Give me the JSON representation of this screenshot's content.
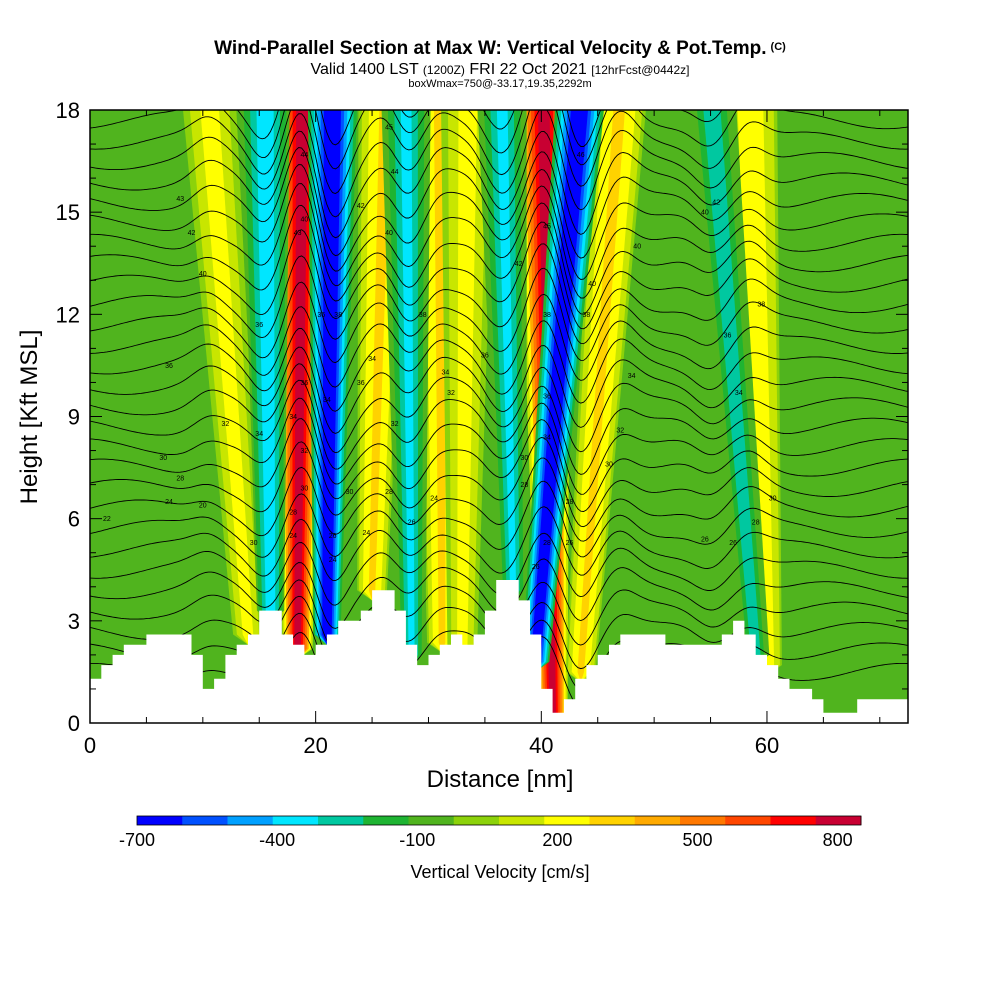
{
  "title": "Wind-Parallel Section at Max W: Vertical Velocity & Pot.Temp.",
  "copyright_mark": "(C)",
  "subtitle": {
    "valid_prefix": "Valid 1400 LST",
    "zulu": "(1200Z)",
    "date": "FRI 22 Oct 2021",
    "forecast": "[12hrFcst@0442z]"
  },
  "subtitle2": "boxWmax=750@-33.17,19.35,2292m",
  "chart_data": {
    "type": "heatmap",
    "xlabel": "Distance [nm]",
    "ylabel": "Height [Kft MSL]",
    "xlim": [
      0,
      72.5
    ],
    "ylim": [
      0,
      18
    ],
    "x_ticks": [
      0,
      20,
      40,
      60
    ],
    "y_ticks": [
      0,
      3,
      6,
      9,
      12,
      15,
      18
    ],
    "colorbar": {
      "label": "Vertical Velocity [cm/s]",
      "tick_labels": [
        "-700",
        "-400",
        "-100",
        "200",
        "500",
        "800"
      ],
      "tick_values": [
        -700,
        -400,
        -100,
        200,
        500,
        800
      ],
      "range": [
        -700,
        850
      ],
      "colors": [
        "#0000ff",
        "#0050ff",
        "#00a0ff",
        "#00e6ff",
        "#00c8a0",
        "#1eb432",
        "#50b41e",
        "#8cd20a",
        "#c8e600",
        "#ffff00",
        "#ffd200",
        "#ffaa00",
        "#ff7800",
        "#ff4600",
        "#ff0000",
        "#c80032"
      ]
    },
    "updrafts": [
      {
        "x_top": 18.8,
        "x_bottom": 18.4,
        "w_max": 800
      },
      {
        "x_top": 40.2,
        "x_bottom": 41.0,
        "w_max": 800
      },
      {
        "x_top": 26.2,
        "x_bottom": 25.0,
        "w_max": 300
      },
      {
        "x_top": 31.0,
        "x_bottom": 31.2,
        "w_max": 300
      },
      {
        "x_top": 47.0,
        "x_bottom": 43.5,
        "w_max": 300
      },
      {
        "x_top": 58.5,
        "x_bottom": 60.0,
        "w_max": 250
      },
      {
        "x_top": 10.5,
        "x_bottom": 14.0,
        "w_max": 200
      },
      {
        "x_top": 33.5,
        "x_bottom": 33.0,
        "w_max": 200
      }
    ],
    "downdrafts": [
      {
        "x_top": 21.5,
        "x_bottom": 21.0,
        "w_min": -700
      },
      {
        "x_top": 43.5,
        "x_bottom": 39.5,
        "w_min": -700
      },
      {
        "x_top": 15.5,
        "x_bottom": 16.0,
        "w_min": -400
      },
      {
        "x_top": 28.0,
        "x_bottom": 28.5,
        "w_min": -350
      },
      {
        "x_top": 36.5,
        "x_bottom": 37.5,
        "w_min": -350
      },
      {
        "x_top": 55.0,
        "x_bottom": 59.0,
        "w_min": -250
      }
    ],
    "terrain_kft": {
      "x": [
        0,
        1,
        2,
        3,
        4,
        5,
        6,
        7,
        8,
        9,
        10,
        11,
        12,
        13,
        14,
        15,
        16,
        17,
        18,
        19,
        20,
        21,
        22,
        23,
        24,
        25,
        26,
        27,
        28,
        29,
        30,
        31,
        32,
        33,
        34,
        35,
        36,
        37,
        38,
        39,
        40,
        41,
        42,
        43,
        44,
        45,
        46,
        47,
        48,
        49,
        50,
        51,
        52,
        53,
        54,
        55,
        56,
        57,
        58,
        59,
        60,
        61,
        62,
        63,
        64,
        65,
        66,
        67,
        68,
        69,
        70,
        71,
        72.5
      ],
      "y": [
        1.3,
        1.7,
        2.0,
        2.3,
        2.3,
        2.6,
        2.6,
        2.6,
        2.6,
        2.0,
        1.0,
        1.3,
        2.0,
        2.3,
        2.6,
        3.3,
        3.3,
        2.6,
        2.3,
        2.0,
        2.3,
        2.6,
        3.0,
        3.0,
        3.3,
        3.9,
        3.9,
        3.3,
        2.3,
        1.7,
        2.0,
        2.3,
        2.6,
        2.3,
        2.6,
        3.3,
        4.2,
        4.2,
        3.6,
        2.6,
        1.0,
        0.3,
        0.7,
        1.3,
        1.7,
        2.0,
        2.3,
        2.6,
        2.6,
        2.6,
        2.6,
        2.3,
        2.3,
        2.3,
        2.3,
        2.3,
        2.6,
        3.0,
        2.6,
        2.0,
        1.7,
        1.3,
        1.0,
        1.0,
        0.7,
        0.3,
        0.3,
        0.3,
        0.7,
        0.7,
        0.7,
        0.7,
        0.3
      ]
    },
    "theta_contour_labels": [
      {
        "x": 8,
        "y": 15.4,
        "label": "43"
      },
      {
        "x": 9,
        "y": 14.4,
        "label": "42"
      },
      {
        "x": 10,
        "y": 13.2,
        "label": "40"
      },
      {
        "x": 7,
        "y": 10.5,
        "label": "36"
      },
      {
        "x": 12,
        "y": 8.8,
        "label": "32"
      },
      {
        "x": 6.5,
        "y": 7.8,
        "label": "30"
      },
      {
        "x": 8,
        "y": 7.2,
        "label": "28"
      },
      {
        "x": 7,
        "y": 6.5,
        "label": "24"
      },
      {
        "x": 1.5,
        "y": 6.0,
        "label": "22"
      },
      {
        "x": 10,
        "y": 6.4,
        "label": "20"
      },
      {
        "x": 15,
        "y": 11.7,
        "label": "36"
      },
      {
        "x": 15,
        "y": 8.5,
        "label": "34"
      },
      {
        "x": 14.5,
        "y": 5.3,
        "label": "30"
      },
      {
        "x": 18.4,
        "y": 14.4,
        "label": "43"
      },
      {
        "x": 19,
        "y": 16.7,
        "label": "44"
      },
      {
        "x": 19,
        "y": 10.0,
        "label": "36"
      },
      {
        "x": 18,
        "y": 9.0,
        "label": "34"
      },
      {
        "x": 19,
        "y": 8.0,
        "label": "32"
      },
      {
        "x": 19,
        "y": 6.9,
        "label": "30"
      },
      {
        "x": 18,
        "y": 6.2,
        "label": "28"
      },
      {
        "x": 18,
        "y": 5.5,
        "label": "24"
      },
      {
        "x": 19,
        "y": 14.8,
        "label": "40"
      },
      {
        "x": 20.5,
        "y": 12.0,
        "label": "36"
      },
      {
        "x": 22,
        "y": 12.0,
        "label": "38"
      },
      {
        "x": 21,
        "y": 9.5,
        "label": "34"
      },
      {
        "x": 21.5,
        "y": 5.5,
        "label": "26"
      },
      {
        "x": 21.5,
        "y": 4.8,
        "label": "24"
      },
      {
        "x": 26.5,
        "y": 17.5,
        "label": "45"
      },
      {
        "x": 27,
        "y": 16.2,
        "label": "44"
      },
      {
        "x": 24,
        "y": 15.2,
        "label": "42"
      },
      {
        "x": 26.5,
        "y": 14.4,
        "label": "40"
      },
      {
        "x": 24,
        "y": 10.0,
        "label": "36"
      },
      {
        "x": 25,
        "y": 10.7,
        "label": "34"
      },
      {
        "x": 27,
        "y": 8.8,
        "label": "32"
      },
      {
        "x": 23,
        "y": 6.8,
        "label": "30"
      },
      {
        "x": 26.5,
        "y": 6.8,
        "label": "28"
      },
      {
        "x": 24.5,
        "y": 5.6,
        "label": "24"
      },
      {
        "x": 29.5,
        "y": 12.0,
        "label": "38"
      },
      {
        "x": 31.5,
        "y": 10.3,
        "label": "34"
      },
      {
        "x": 32,
        "y": 9.7,
        "label": "32"
      },
      {
        "x": 30.5,
        "y": 6.6,
        "label": "24"
      },
      {
        "x": 28.5,
        "y": 5.9,
        "label": "26"
      },
      {
        "x": 35,
        "y": 10.8,
        "label": "36"
      },
      {
        "x": 38,
        "y": 13.5,
        "label": "42"
      },
      {
        "x": 40.5,
        "y": 14.6,
        "label": "45"
      },
      {
        "x": 40.5,
        "y": 12.0,
        "label": "38"
      },
      {
        "x": 40.5,
        "y": 9.6,
        "label": "36"
      },
      {
        "x": 40.5,
        "y": 8.4,
        "label": "34"
      },
      {
        "x": 38.5,
        "y": 7.8,
        "label": "30"
      },
      {
        "x": 38.5,
        "y": 7.0,
        "label": "28"
      },
      {
        "x": 40.5,
        "y": 5.3,
        "label": "28"
      },
      {
        "x": 39.5,
        "y": 4.6,
        "label": "26"
      },
      {
        "x": 43.5,
        "y": 16.7,
        "label": "46"
      },
      {
        "x": 44.5,
        "y": 12.9,
        "label": "40"
      },
      {
        "x": 44,
        "y": 12.0,
        "label": "38"
      },
      {
        "x": 42.5,
        "y": 6.5,
        "label": "28"
      },
      {
        "x": 42.5,
        "y": 5.3,
        "label": "26"
      },
      {
        "x": 48.5,
        "y": 14.0,
        "label": "40"
      },
      {
        "x": 48,
        "y": 10.2,
        "label": "34"
      },
      {
        "x": 47,
        "y": 8.6,
        "label": "32"
      },
      {
        "x": 46,
        "y": 7.6,
        "label": "30"
      },
      {
        "x": 55.5,
        "y": 15.3,
        "label": "42"
      },
      {
        "x": 54.5,
        "y": 15.0,
        "label": "40"
      },
      {
        "x": 59.5,
        "y": 12.3,
        "label": "38"
      },
      {
        "x": 56.5,
        "y": 11.4,
        "label": "36"
      },
      {
        "x": 57.5,
        "y": 9.7,
        "label": "34"
      },
      {
        "x": 60.5,
        "y": 6.6,
        "label": "30"
      },
      {
        "x": 59,
        "y": 5.9,
        "label": "28"
      },
      {
        "x": 54.5,
        "y": 5.4,
        "label": "26"
      },
      {
        "x": 57,
        "y": 5.3,
        "label": "26"
      }
    ]
  }
}
